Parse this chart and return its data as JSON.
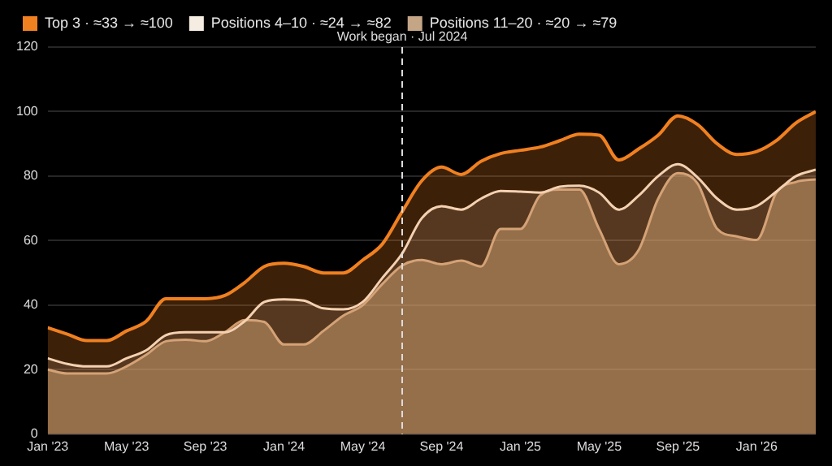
{
  "chart_data": {
    "type": "area",
    "x": [
      "2023-01",
      "2023-02",
      "2023-03",
      "2023-04",
      "2023-05",
      "2023-06",
      "2023-07",
      "2023-08",
      "2023-09",
      "2023-10",
      "2023-11",
      "2023-12",
      "2024-01",
      "2024-02",
      "2024-03",
      "2024-04",
      "2024-05",
      "2024-06",
      "2024-07",
      "2024-08",
      "2024-09",
      "2024-10",
      "2024-11",
      "2024-12",
      "2025-01",
      "2025-02",
      "2025-03",
      "2025-04",
      "2025-05",
      "2025-06",
      "2025-07",
      "2025-08",
      "2025-09",
      "2025-10",
      "2025-11",
      "2025-12",
      "2026-01",
      "2026-02",
      "2026-03",
      "2026-04"
    ],
    "series": [
      {
        "name": "Top 3 · ≈33 → ≈100",
        "color": "#f08020",
        "values": [
          33,
          31,
          29,
          29,
          32,
          35,
          42,
          42,
          42,
          43,
          47,
          52,
          53,
          52,
          50,
          50,
          54,
          59,
          69,
          78.6,
          82.8,
          80.5,
          84.6,
          87,
          88,
          89,
          91,
          93,
          92.7,
          85,
          88.4,
          92.7,
          98.7,
          96,
          90,
          86.7,
          87.6,
          91,
          96.5,
          100
        ]
      },
      {
        "name": "Positions 4–10 · ≈24 → ≈82",
        "color": "#f5ece2",
        "values": [
          23.5,
          21.8,
          21,
          21,
          23.5,
          26,
          30.7,
          31.6,
          31.6,
          31.6,
          35,
          41,
          41.8,
          41.4,
          39,
          38.7,
          41,
          48.5,
          56,
          67,
          70.7,
          69.6,
          73,
          75.4,
          75.2,
          74.9,
          76.7,
          77,
          74.9,
          69.6,
          73.9,
          80,
          83.7,
          79.6,
          73,
          69.6,
          70.7,
          75.2,
          80,
          82
        ]
      },
      {
        "name": "Positions 11–20 · ≈20 → ≈79",
        "color": "#c4a586",
        "values": [
          20,
          18.8,
          18.8,
          18.8,
          21,
          24.6,
          28.8,
          29.3,
          28.8,
          31.6,
          35.4,
          34.8,
          27.8,
          27.8,
          32,
          36.7,
          40,
          46.6,
          52.3,
          54,
          52.7,
          53.8,
          52,
          63.6,
          63.6,
          74,
          75.8,
          75.8,
          63.6,
          52.7,
          57,
          73,
          80.9,
          77.7,
          63.6,
          61.3,
          60.2,
          74.9,
          78.2,
          79
        ]
      }
    ],
    "xlim": [
      "2023-01",
      "2026-04"
    ],
    "xticks": [
      {
        "value": "2023-01",
        "label": "Jan '23"
      },
      {
        "value": "2023-05",
        "label": "May '23"
      },
      {
        "value": "2023-09",
        "label": "Sep '23"
      },
      {
        "value": "2024-01",
        "label": "Jan '24"
      },
      {
        "value": "2024-05",
        "label": "May '24"
      },
      {
        "value": "2024-09",
        "label": "Sep '24"
      },
      {
        "value": "2025-01",
        "label": "Jan '25"
      },
      {
        "value": "2025-05",
        "label": "May '25"
      },
      {
        "value": "2025-09",
        "label": "Sep '25"
      },
      {
        "value": "2026-01",
        "label": "Jan '26"
      }
    ],
    "ylim": [
      0,
      120
    ],
    "yticks": [
      0,
      20,
      40,
      60,
      80,
      100,
      120
    ],
    "grid": "y",
    "legend": "top left",
    "ref_lines": [
      {
        "axis": "x",
        "value": "2024-07",
        "label": "Work began · Jul 2024",
        "color": "#dddddd",
        "line_style": "dashed"
      }
    ]
  }
}
